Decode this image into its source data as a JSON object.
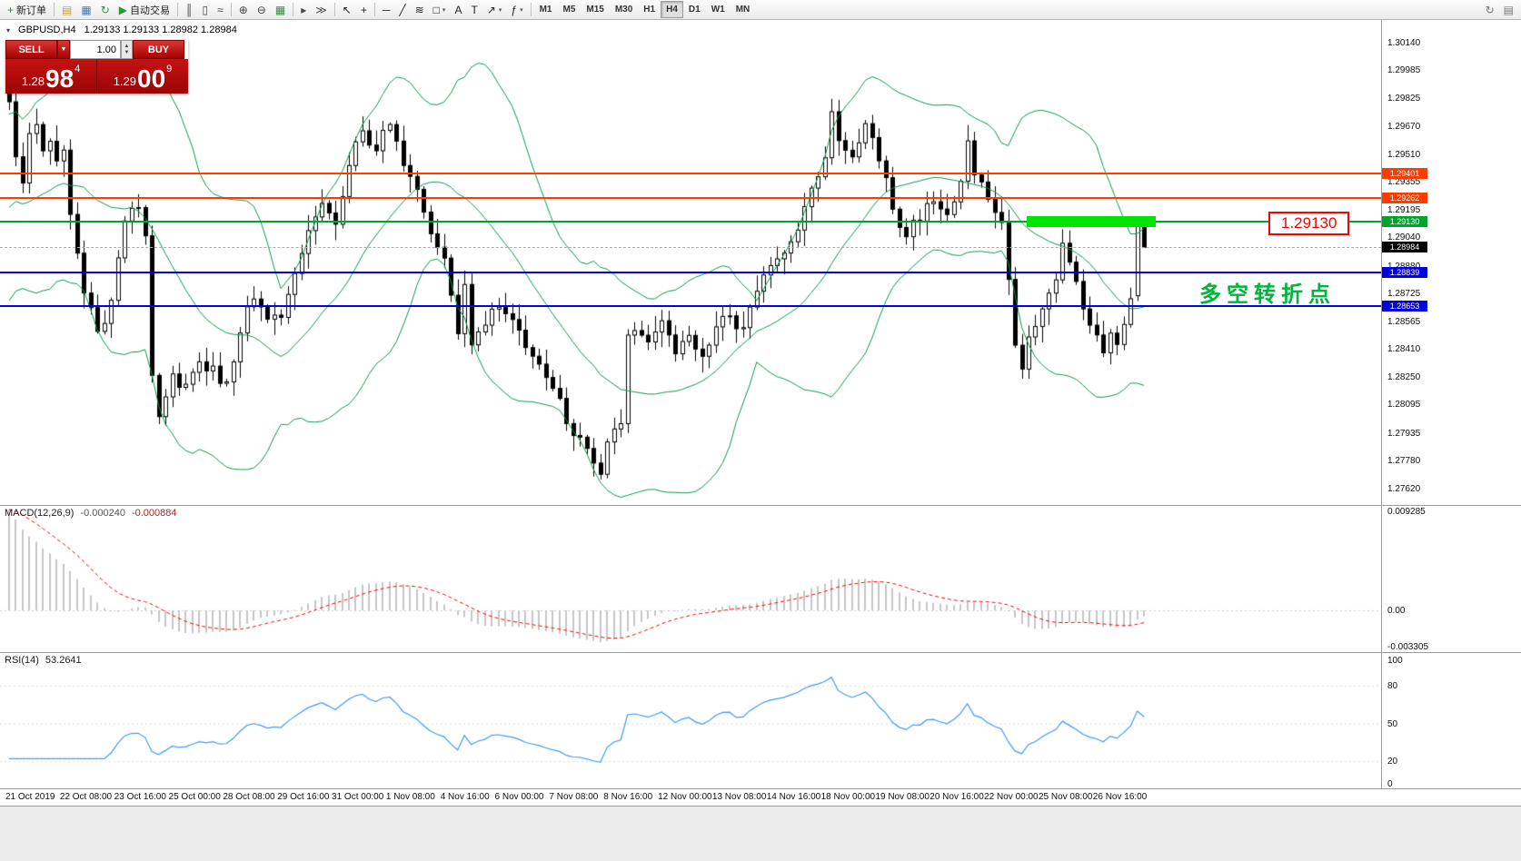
{
  "toolbar": {
    "items": [
      {
        "name": "new-order-button",
        "glyph": "+",
        "glyph_color": "#18a32a",
        "label": "新订单"
      },
      {
        "name": "divider"
      },
      {
        "name": "profiles-button",
        "glyph": "▤",
        "glyph_color": "#c9a227"
      },
      {
        "name": "market-watch-button",
        "glyph": "▦",
        "glyph_color": "#4a78b0"
      },
      {
        "name": "refresh-button",
        "glyph": "↻",
        "glyph_color": "#3a8e46"
      },
      {
        "name": "autotrading-button",
        "glyph": "▶",
        "glyph_color": "#18a32a",
        "label": "自动交易"
      },
      {
        "name": "divider"
      },
      {
        "name": "bar-chart-button",
        "glyph": "║",
        "glyph_color": "#444"
      },
      {
        "name": "candlestick-chart-button",
        "glyph": "▯",
        "glyph_color": "#444"
      },
      {
        "name": "line-chart-button",
        "glyph": "≈",
        "glyph_color": "#444"
      },
      {
        "name": "divider"
      },
      {
        "name": "zoom-in-button",
        "glyph": "⊕",
        "glyph_color": "#444"
      },
      {
        "name": "zoom-out-button",
        "glyph": "⊖",
        "glyph_color": "#444"
      },
      {
        "name": "grid-button",
        "glyph": "▦",
        "glyph_color": "#3a8e46"
      },
      {
        "name": "divider"
      },
      {
        "name": "chart-shift-button",
        "glyph": "▸",
        "glyph_color": "#444"
      },
      {
        "name": "auto-scroll-button",
        "glyph": "≫",
        "glyph_color": "#444"
      },
      {
        "name": "divider"
      },
      {
        "name": "cursor-button",
        "glyph": "↖",
        "glyph_color": "#222"
      },
      {
        "name": "crosshair-button",
        "glyph": "+",
        "glyph_color": "#222"
      },
      {
        "name": "divider"
      },
      {
        "name": "horizontal-line-button",
        "glyph": "─",
        "glyph_color": "#222"
      },
      {
        "name": "trendline-button",
        "glyph": "╱",
        "glyph_color": "#222"
      },
      {
        "name": "fibonacci-button",
        "glyph": "≋",
        "glyph_color": "#222"
      },
      {
        "name": "shapes-button",
        "glyph": "□",
        "glyph_color": "#222",
        "dropdown": true
      },
      {
        "name": "text-tool-button",
        "glyph": "A",
        "glyph_color": "#222"
      },
      {
        "name": "text-label-button",
        "glyph": "T",
        "glyph_color": "#222"
      },
      {
        "name": "arrow-tool-button",
        "glyph": "↗",
        "glyph_color": "#222",
        "dropdown": true
      },
      {
        "name": "indicators-button",
        "glyph": "ƒ",
        "glyph_color": "#222",
        "dropdown": true
      },
      {
        "name": "divider"
      }
    ],
    "timeframes": {
      "items": [
        "M1",
        "M5",
        "M15",
        "M30",
        "H1",
        "H4",
        "D1",
        "W1",
        "MN"
      ],
      "active": "H4"
    },
    "right_items": [
      {
        "name": "window-refresh-button",
        "glyph": "↻",
        "glyph_color": "#777"
      },
      {
        "name": "window-list-button",
        "glyph": "▤",
        "glyph_color": "#777"
      }
    ]
  },
  "quote": {
    "collapse_glyph": "▾",
    "symbol_period": "GBPUSD,H4",
    "ohlc_text": "1.29133 1.29133 1.28982 1.28984"
  },
  "trade_panel": {
    "sell_label": "SELL",
    "buy_label": "BUY",
    "volume": "1.00",
    "dropdown_glyph": "▼",
    "spin_up": "▲",
    "spin_down": "▼",
    "sell_price": {
      "small": "1.28",
      "big": "98",
      "sup": "4"
    },
    "buy_price": {
      "small": "1.29",
      "big": "00",
      "sup": "9"
    }
  },
  "chart_data": {
    "type": "candlestick",
    "symbol": "GBPUSD",
    "timeframe": "H4",
    "title": "GBPUSD,H4",
    "ohlc_display": {
      "open": "1.29133",
      "high": "1.29133",
      "low": "1.28982",
      "close": "1.28984"
    },
    "y_axis": {
      "top_value": 1.3014,
      "bottom_value": 1.2762,
      "labels": [
        "1.30140",
        "1.29985",
        "1.29825",
        "1.29670",
        "1.29510",
        "1.29355",
        "1.29195",
        "1.29040",
        "1.28880",
        "1.28725",
        "1.28565",
        "1.28410",
        "1.28250",
        "1.28095",
        "1.27935",
        "1.27780",
        "1.27620"
      ]
    },
    "x_axis": {
      "candles_per_label": 8,
      "labels": [
        "21 Oct 2019",
        "22 Oct 08:00",
        "23 Oct 16:00",
        "25 Oct 00:00",
        "28 Oct 08:00",
        "29 Oct 16:00",
        "31 Oct 00:00",
        "1 Nov 08:00",
        "4 Nov 16:00",
        "6 Nov 00:00",
        "7 Nov 08:00",
        "8 Nov 16:00",
        "12 Nov 00:00",
        "13 Nov 08:00",
        "14 Nov 16:00",
        "18 Nov 00:00",
        "19 Nov 08:00",
        "20 Nov 16:00",
        "22 Nov 00:00",
        "25 Nov 08:00",
        "26 Nov 16:00"
      ]
    },
    "candles": {
      "bull_color": "#ffffff",
      "bear_color": "#000000",
      "outline_color": "#000000",
      "close_path": [
        [
          0,
          1.298
        ],
        [
          1,
          1.2952
        ],
        [
          2,
          1.2935
        ],
        [
          3,
          1.2962
        ],
        [
          4,
          1.2968
        ],
        [
          5,
          1.2955
        ],
        [
          6,
          1.2958
        ],
        [
          7,
          1.2948
        ],
        [
          8,
          1.2952
        ],
        [
          9,
          1.2918
        ],
        [
          10,
          1.2898
        ],
        [
          11,
          1.2875
        ],
        [
          12,
          1.2862
        ],
        [
          13,
          1.2852
        ],
        [
          14,
          1.2858
        ],
        [
          15,
          1.2868
        ],
        [
          16,
          1.2892
        ],
        [
          17,
          1.2912
        ],
        [
          18,
          1.2918
        ],
        [
          19,
          1.2921
        ],
        [
          20,
          1.2905
        ],
        [
          21,
          1.2828
        ],
        [
          22,
          1.2802
        ],
        [
          23,
          1.2815
        ],
        [
          24,
          1.2826
        ],
        [
          25,
          1.2818
        ],
        [
          26,
          1.2822
        ],
        [
          27,
          1.283
        ],
        [
          28,
          1.2836
        ],
        [
          29,
          1.2828
        ],
        [
          30,
          1.2831
        ],
        [
          31,
          1.2822
        ],
        [
          32,
          1.282
        ],
        [
          33,
          1.2836
        ],
        [
          34,
          1.2851
        ],
        [
          35,
          1.2862
        ],
        [
          36,
          1.2871
        ],
        [
          37,
          1.2862
        ],
        [
          38,
          1.2855
        ],
        [
          39,
          1.2858
        ],
        [
          40,
          1.2861
        ],
        [
          41,
          1.2872
        ],
        [
          42,
          1.2885
        ],
        [
          43,
          1.2896
        ],
        [
          44,
          1.2906
        ],
        [
          45,
          1.2913
        ],
        [
          46,
          1.2921
        ],
        [
          47,
          1.2916
        ],
        [
          48,
          1.2914
        ],
        [
          49,
          1.2928
        ],
        [
          50,
          1.2945
        ],
        [
          51,
          1.2958
        ],
        [
          52,
          1.2965
        ],
        [
          53,
          1.2958
        ],
        [
          54,
          1.2955
        ],
        [
          55,
          1.2963
        ],
        [
          56,
          1.297
        ],
        [
          57,
          1.296
        ],
        [
          58,
          1.2945
        ],
        [
          59,
          1.2938
        ],
        [
          60,
          1.293
        ],
        [
          61,
          1.2918
        ],
        [
          62,
          1.2906
        ],
        [
          63,
          1.2899
        ],
        [
          64,
          1.2895
        ],
        [
          65,
          1.2872
        ],
        [
          66,
          1.2851
        ],
        [
          67,
          1.2878
        ],
        [
          68,
          1.2842
        ],
        [
          69,
          1.2848
        ],
        [
          70,
          1.2856
        ],
        [
          71,
          1.2862
        ],
        [
          72,
          1.2866
        ],
        [
          73,
          1.2862
        ],
        [
          74,
          1.2859
        ],
        [
          75,
          1.2849
        ],
        [
          76,
          1.2841
        ],
        [
          77,
          1.2835
        ],
        [
          78,
          1.283
        ],
        [
          79,
          1.2825
        ],
        [
          80,
          1.282
        ],
        [
          81,
          1.281
        ],
        [
          82,
          1.2801
        ],
        [
          83,
          1.2795
        ],
        [
          84,
          1.279
        ],
        [
          85,
          1.2782
        ],
        [
          86,
          1.2775
        ],
        [
          87,
          1.2772
        ],
        [
          88,
          1.2786
        ],
        [
          89,
          1.2794
        ],
        [
          90,
          1.2801
        ],
        [
          91,
          1.2846
        ],
        [
          92,
          1.2851
        ],
        [
          93,
          1.2848
        ],
        [
          94,
          1.2845
        ],
        [
          95,
          1.2851
        ],
        [
          96,
          1.2856
        ],
        [
          97,
          1.2848
        ],
        [
          98,
          1.2841
        ],
        [
          99,
          1.2844
        ],
        [
          100,
          1.2846
        ],
        [
          101,
          1.284
        ],
        [
          102,
          1.2836
        ],
        [
          103,
          1.2846
        ],
        [
          104,
          1.2856
        ],
        [
          105,
          1.2859
        ],
        [
          106,
          1.2861
        ],
        [
          107,
          1.2855
        ],
        [
          108,
          1.2851
        ],
        [
          109,
          1.2862
        ],
        [
          110,
          1.2876
        ],
        [
          111,
          1.2884
        ],
        [
          112,
          1.2891
        ],
        [
          113,
          1.2893
        ],
        [
          114,
          1.2896
        ],
        [
          115,
          1.2903
        ],
        [
          116,
          1.2911
        ],
        [
          117,
          1.2921
        ],
        [
          118,
          1.2931
        ],
        [
          119,
          1.2941
        ],
        [
          120,
          1.2951
        ],
        [
          121,
          1.2976
        ],
        [
          122,
          1.2961
        ],
        [
          123,
          1.2955
        ],
        [
          124,
          1.2951
        ],
        [
          125,
          1.2958
        ],
        [
          126,
          1.2966
        ],
        [
          127,
          1.2958
        ],
        [
          128,
          1.295
        ],
        [
          129,
          1.2935
        ],
        [
          130,
          1.2921
        ],
        [
          131,
          1.2912
        ],
        [
          132,
          1.2906
        ],
        [
          133,
          1.2911
        ],
        [
          134,
          1.2916
        ],
        [
          135,
          1.2921
        ],
        [
          136,
          1.2926
        ],
        [
          137,
          1.2922
        ],
        [
          138,
          1.2919
        ],
        [
          139,
          1.2927
        ],
        [
          140,
          1.2936
        ],
        [
          141,
          1.2961
        ],
        [
          142,
          1.2941
        ],
        [
          143,
          1.2933
        ],
        [
          144,
          1.2926
        ],
        [
          145,
          1.2918
        ],
        [
          146,
          1.291
        ],
        [
          147,
          1.2881
        ],
        [
          148,
          1.2846
        ],
        [
          149,
          1.283
        ],
        [
          150,
          1.2846
        ],
        [
          151,
          1.2856
        ],
        [
          152,
          1.2866
        ],
        [
          153,
          1.2873
        ],
        [
          154,
          1.2881
        ],
        [
          155,
          1.2901
        ],
        [
          156,
          1.2891
        ],
        [
          157,
          1.2878
        ],
        [
          158,
          1.2866
        ],
        [
          159,
          1.2855
        ],
        [
          160,
          1.2846
        ],
        [
          161,
          1.2836
        ],
        [
          162,
          1.2851
        ],
        [
          163,
          1.2841
        ],
        [
          164,
          1.2856
        ],
        [
          165,
          1.2871
        ],
        [
          166,
          1.2913
        ],
        [
          167,
          1.28984
        ]
      ],
      "last_two": [
        {
          "o": 1.2871,
          "h": 1.29135,
          "l": 1.2868,
          "c": 1.2913
        },
        {
          "o": 1.29133,
          "h": 1.29133,
          "l": 1.28982,
          "c": 1.28984
        }
      ]
    },
    "bollinger": {
      "period": 20,
      "deviation": 2,
      "color": "#0a9a47"
    },
    "levels": [
      {
        "name": "resistance-1",
        "price": 1.29401,
        "label": "1.29401",
        "color": "#ff3c00",
        "line_color": "#ff3c00",
        "style": "solid",
        "width": 2
      },
      {
        "name": "resistance-2",
        "price": 1.29262,
        "label": "1.29262",
        "color": "#ff3c00",
        "line_color": "#ff3c00",
        "style": "solid",
        "width": 2
      },
      {
        "name": "pivot-green",
        "price": 1.2913,
        "label": "1.29130",
        "color": "#00a32e",
        "line_color": "#00a32e",
        "style": "solid",
        "width": 2
      },
      {
        "name": "current-price",
        "price": 1.28984,
        "label": "1.28984",
        "color": "#000000",
        "line_color": "#aaaaaa",
        "style": "dashed",
        "width": 1
      },
      {
        "name": "support-1",
        "price": 1.28839,
        "label": "1.28839",
        "color": "#0000e0",
        "line_color": "#0000e0",
        "style": "solid",
        "width": 2
      },
      {
        "name": "support-2",
        "price": 1.28653,
        "label": "1.28653",
        "color": "#0000e0",
        "line_color": "#0000e0",
        "style": "solid",
        "width": 2
      }
    ],
    "annotations": {
      "highlight_rect": {
        "price": 1.2913,
        "x_from_index": 150,
        "x_to_index": 169,
        "color": "#00e400"
      },
      "price_callout": {
        "text": "1.29130",
        "color": "#ff0000"
      },
      "note": {
        "text": "多空转折点",
        "color": "#00b43c"
      }
    },
    "macd": {
      "label": "MACD(12,26,9)",
      "values_text": [
        "-0.000240",
        "-0.000884"
      ],
      "axis_labels": [
        "0.009285",
        "0.00",
        "-0.003305"
      ],
      "axis_values": [
        0.009285,
        0,
        -0.003305
      ],
      "start_seed": 0.0093,
      "hist_color": "#c6c6c6",
      "signal_color": "#ff0000"
    },
    "rsi": {
      "label": "RSI(14)",
      "value_text": "53.2641",
      "period": 14,
      "axis_labels": [
        "100",
        "80",
        "50",
        "20",
        "0"
      ],
      "axis_values": [
        100,
        80,
        50,
        20,
        0
      ],
      "color": "#3e9bfc"
    }
  }
}
